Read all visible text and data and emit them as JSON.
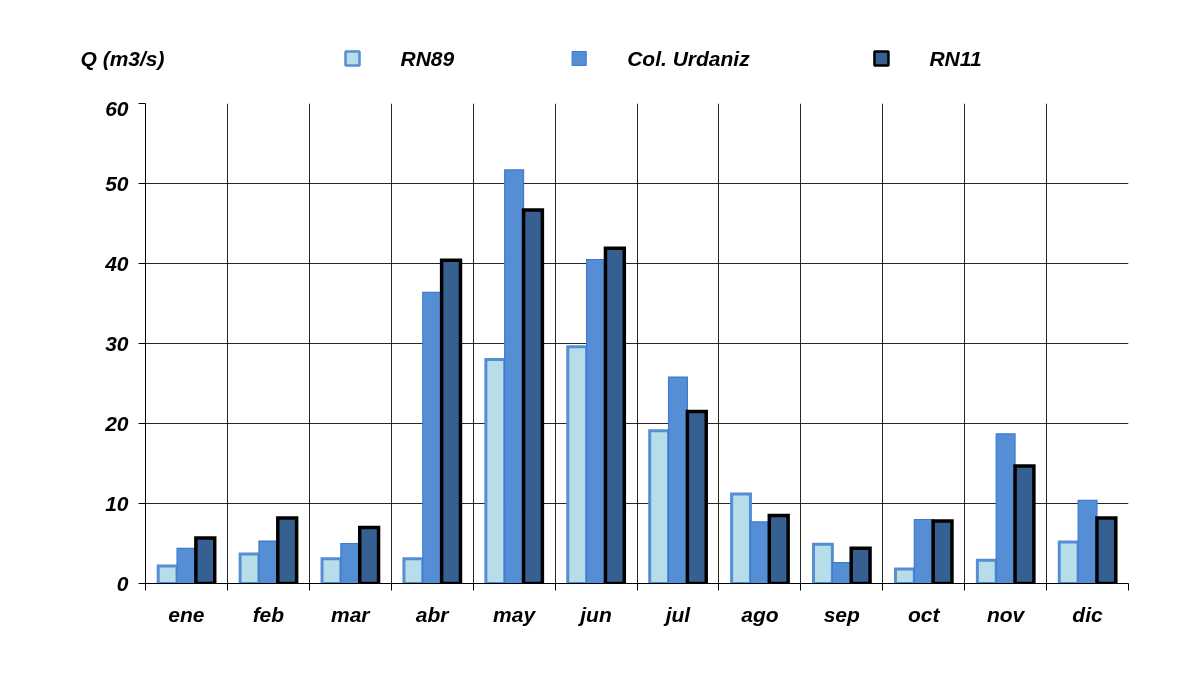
{
  "chart_data": {
    "type": "bar",
    "ylabel": "Q (m3/s)",
    "categories": [
      "ene",
      "feb",
      "mar",
      "abr",
      "may",
      "jun",
      "jul",
      "ago",
      "sep",
      "oct",
      "nov",
      "dic"
    ],
    "series": [
      {
        "name": "RN89",
        "color": "#b7dde8",
        "values": [
          2.2,
          3.7,
          3.1,
          3.1,
          28.0,
          29.6,
          19.1,
          11.2,
          4.9,
          1.8,
          2.9,
          5.2
        ]
      },
      {
        "name": "Col. Urdaniz",
        "color": "#558ed5",
        "values": [
          4.4,
          5.3,
          5.0,
          36.4,
          51.7,
          40.5,
          25.8,
          7.7,
          2.6,
          8.0,
          18.7,
          10.4
        ]
      },
      {
        "name": "RN11",
        "color": "#376092",
        "values": [
          5.7,
          8.2,
          7.0,
          40.4,
          46.7,
          41.9,
          21.5,
          8.5,
          4.4,
          7.8,
          14.7,
          8.2
        ]
      }
    ],
    "ylim": [
      0,
      60
    ],
    "yticks": [
      0,
      10,
      20,
      30,
      40,
      50,
      60
    ],
    "grid": true,
    "legend": "top"
  }
}
